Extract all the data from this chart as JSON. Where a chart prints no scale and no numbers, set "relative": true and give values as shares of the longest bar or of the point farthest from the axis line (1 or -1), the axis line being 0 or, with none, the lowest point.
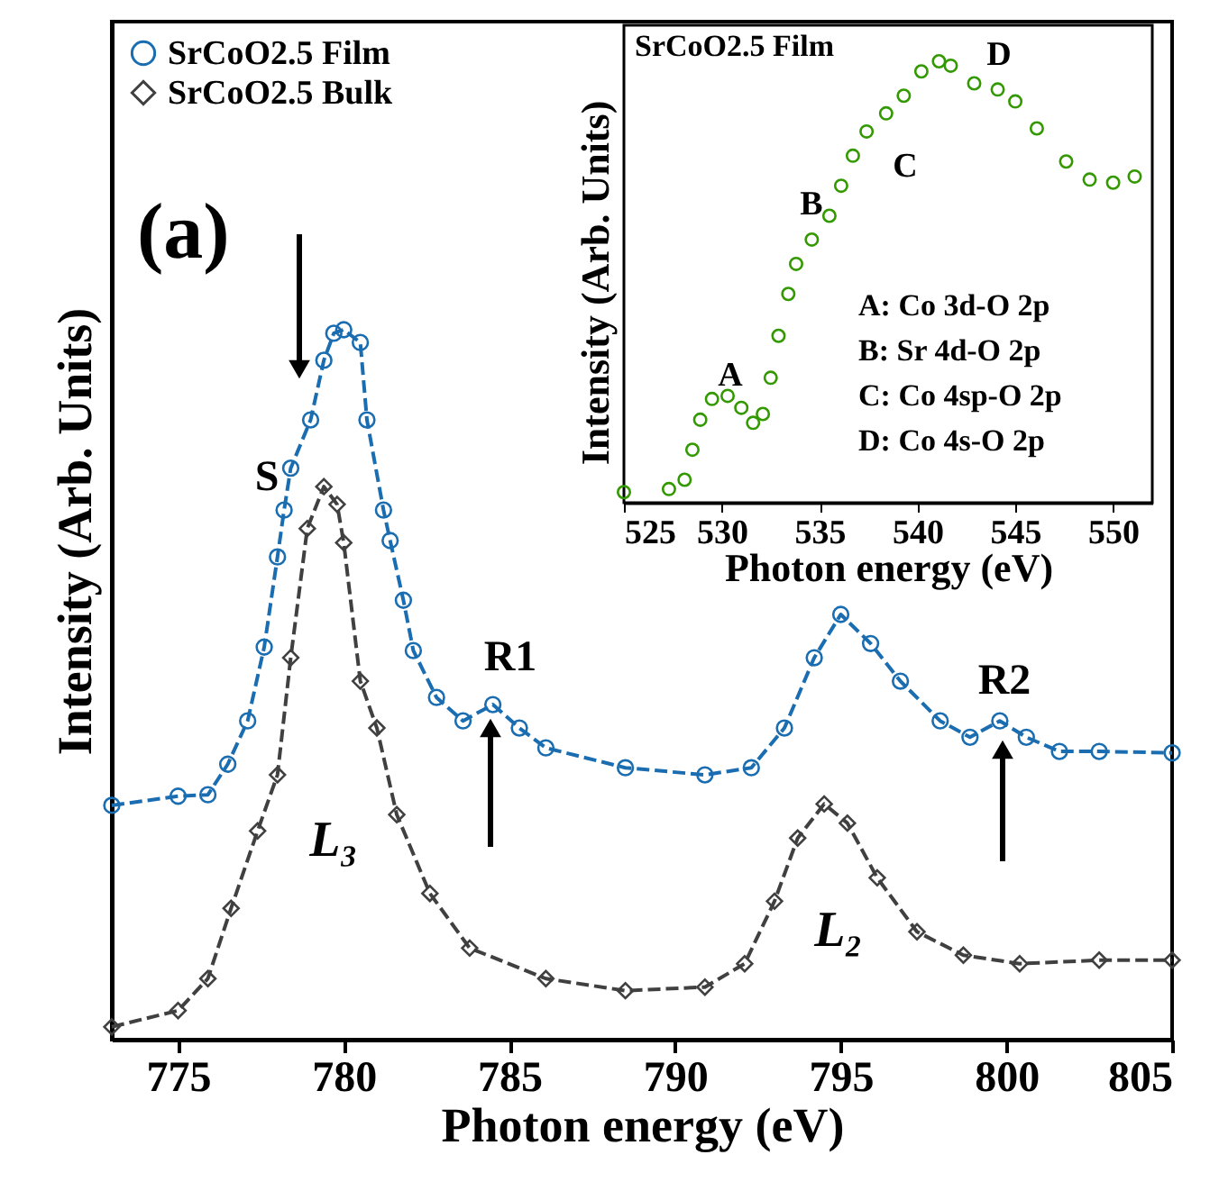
{
  "chart_data": [
    {
      "type": "line",
      "xlabel": "Photon energy (eV)",
      "ylabel": "Intensity (Arb. Units)",
      "relative": true,
      "xlim": [
        773,
        805
      ],
      "xticks": [
        775,
        780,
        785,
        790,
        795,
        800,
        805
      ],
      "tick_labels": "x",
      "grid": false,
      "legend": "top left",
      "marker": "circle",
      "line_style": "dashed",
      "series": [
        {
          "name": "SrCoO2.5 Film",
          "color": "#1a6db0",
          "marker": "circle",
          "x": [
            773,
            775,
            775.9,
            776.5,
            777.1,
            777.6,
            778.0,
            778.2,
            778.4,
            779.0,
            779.4,
            779.7,
            780.0,
            780.5,
            780.7,
            781.2,
            781.4,
            781.8,
            782.1,
            782.8,
            783.6,
            784.5,
            785.3,
            786.1,
            788.5,
            790.9,
            792.3,
            793.3,
            794.2,
            795.0,
            795.9,
            796.8,
            798.0,
            798.9,
            799.8,
            800.6,
            801.6,
            802.8,
            805
          ],
          "values": [
            0.33,
            0.343,
            0.345,
            0.388,
            0.449,
            0.553,
            0.68,
            0.746,
            0.805,
            0.873,
            0.957,
            0.995,
            1.0,
            0.982,
            0.873,
            0.746,
            0.703,
            0.619,
            0.548,
            0.482,
            0.449,
            0.472,
            0.439,
            0.411,
            0.383,
            0.373,
            0.383,
            0.439,
            0.538,
            0.599,
            0.558,
            0.505,
            0.449,
            0.426,
            0.449,
            0.426,
            0.406,
            0.406,
            0.404
          ]
        },
        {
          "name": "SrCoO2.5 Bulk",
          "color": "#404040",
          "marker": "diamond",
          "x": [
            773,
            775,
            775.9,
            776.6,
            777.4,
            778.0,
            778.4,
            778.9,
            779.4,
            779.8,
            780.0,
            780.5,
            781.0,
            781.6,
            782.6,
            783.8,
            786.1,
            788.5,
            790.9,
            792.1,
            793.0,
            793.7,
            794.5,
            795.2,
            796.1,
            797.3,
            798.7,
            800.4,
            802.8,
            805
          ],
          "values": [
            0.018,
            0.041,
            0.086,
            0.185,
            0.294,
            0.373,
            0.538,
            0.72,
            0.779,
            0.754,
            0.7,
            0.505,
            0.439,
            0.317,
            0.206,
            0.129,
            0.086,
            0.069,
            0.074,
            0.107,
            0.195,
            0.284,
            0.332,
            0.305,
            0.228,
            0.152,
            0.119,
            0.107,
            0.112,
            0.112
          ]
        }
      ],
      "annotations": [
        "S",
        "R1",
        "R2",
        "L₃",
        "L₂",
        "(a)"
      ]
    },
    {
      "type": "scatter",
      "xlabel": "Photon energy (eV)",
      "ylabel": "Intensity (Arb. Units)",
      "relative": true,
      "xlim": [
        525,
        552
      ],
      "xticks": [
        525,
        530,
        535,
        540,
        545,
        550
      ],
      "tick_labels": "x",
      "grid": false,
      "marker": "circle",
      "series": [
        {
          "color": "#339900",
          "x": [
            525,
            527.3,
            528.1,
            528.5,
            528.9,
            529.5,
            530.3,
            531.0,
            531.6,
            532.1,
            532.5,
            532.9,
            533.4,
            533.8,
            534.6,
            535.5,
            536.1,
            536.7,
            537.4,
            538.4,
            539.3,
            540.2,
            541.1,
            541.7,
            542.9,
            544.1,
            545.0,
            546.1,
            547.6,
            548.8,
            550.0,
            551.1
          ],
          "values": [
            0.024,
            0.031,
            0.052,
            0.12,
            0.188,
            0.235,
            0.242,
            0.215,
            0.181,
            0.201,
            0.283,
            0.378,
            0.473,
            0.541,
            0.596,
            0.65,
            0.718,
            0.786,
            0.841,
            0.882,
            0.922,
            0.977,
            1.0,
            0.99,
            0.95,
            0.936,
            0.909,
            0.848,
            0.773,
            0.732,
            0.725,
            0.739
          ]
        }
      ],
      "annotations": [
        "SrCoO2.5 Film",
        "A",
        "B",
        "C",
        "D",
        "A: Co 3d-O 2p",
        "B: Sr 4d-O 2p",
        "C: Co 4sp-O 2p",
        "D: Co 4s-O 2p"
      ]
    }
  ]
}
